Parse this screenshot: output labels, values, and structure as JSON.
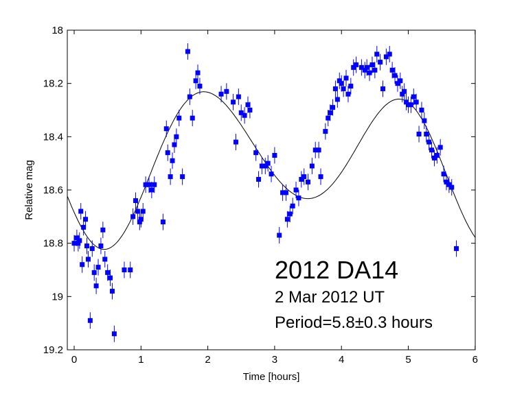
{
  "chart_data": {
    "type": "scatter",
    "xlabel": "Time [hours]",
    "ylabel": "Relative mag",
    "xlim": [
      0,
      6
    ],
    "ylim": [
      18,
      19.2
    ],
    "y_reversed": true,
    "grid": false,
    "xticks": [
      "0",
      "1",
      "2",
      "3",
      "4",
      "5",
      "6"
    ],
    "yticks": [
      "18",
      "18.2",
      "18.4",
      "18.6",
      "18.8",
      "19",
      "19.2"
    ],
    "annotations": [
      "2012 DA14",
      "2 Mar 2012 UT",
      "Period=5.8±0.3 hours"
    ],
    "marker_color": "#0000ff",
    "fit_curve": {
      "type": "sinusoid",
      "period_hours": 5.8
    },
    "points": [
      {
        "x": 0.0,
        "y": 18.8
      },
      {
        "x": 0.04,
        "y": 18.78
      },
      {
        "x": 0.06,
        "y": 18.8
      },
      {
        "x": 0.08,
        "y": 18.79
      },
      {
        "x": 0.1,
        "y": 18.68
      },
      {
        "x": 0.12,
        "y": 18.88
      },
      {
        "x": 0.14,
        "y": 18.74
      },
      {
        "x": 0.17,
        "y": 18.71
      },
      {
        "x": 0.19,
        "y": 18.81
      },
      {
        "x": 0.21,
        "y": 18.86
      },
      {
        "x": 0.24,
        "y": 19.09
      },
      {
        "x": 0.27,
        "y": 18.82
      },
      {
        "x": 0.3,
        "y": 18.91
      },
      {
        "x": 0.33,
        "y": 18.96
      },
      {
        "x": 0.36,
        "y": 18.89
      },
      {
        "x": 0.4,
        "y": 18.81
      },
      {
        "x": 0.43,
        "y": 18.75
      },
      {
        "x": 0.46,
        "y": 18.86
      },
      {
        "x": 0.5,
        "y": 18.91
      },
      {
        "x": 0.54,
        "y": 18.93
      },
      {
        "x": 0.57,
        "y": 18.98
      },
      {
        "x": 0.6,
        "y": 19.14
      },
      {
        "x": 0.75,
        "y": 18.9
      },
      {
        "x": 0.84,
        "y": 18.9
      },
      {
        "x": 0.88,
        "y": 18.7
      },
      {
        "x": 0.92,
        "y": 18.64
      },
      {
        "x": 0.95,
        "y": 18.68
      },
      {
        "x": 0.98,
        "y": 18.72
      },
      {
        "x": 1.0,
        "y": 18.71
      },
      {
        "x": 1.03,
        "y": 18.68
      },
      {
        "x": 1.07,
        "y": 18.58
      },
      {
        "x": 1.12,
        "y": 18.58
      },
      {
        "x": 1.16,
        "y": 18.6
      },
      {
        "x": 1.2,
        "y": 18.58
      },
      {
        "x": 1.33,
        "y": 18.72
      },
      {
        "x": 1.38,
        "y": 18.37
      },
      {
        "x": 1.4,
        "y": 18.46
      },
      {
        "x": 1.44,
        "y": 18.55
      },
      {
        "x": 1.47,
        "y": 18.49
      },
      {
        "x": 1.5,
        "y": 18.43
      },
      {
        "x": 1.53,
        "y": 18.4
      },
      {
        "x": 1.57,
        "y": 18.33
      },
      {
        "x": 1.62,
        "y": 18.55
      },
      {
        "x": 1.7,
        "y": 18.08
      },
      {
        "x": 1.73,
        "y": 18.25
      },
      {
        "x": 1.77,
        "y": 18.33
      },
      {
        "x": 1.82,
        "y": 18.19
      },
      {
        "x": 1.85,
        "y": 18.16
      },
      {
        "x": 1.88,
        "y": 18.21
      },
      {
        "x": 2.2,
        "y": 18.24
      },
      {
        "x": 2.28,
        "y": 18.23
      },
      {
        "x": 2.38,
        "y": 18.27
      },
      {
        "x": 2.42,
        "y": 18.42
      },
      {
        "x": 2.46,
        "y": 18.25
      },
      {
        "x": 2.5,
        "y": 18.31
      },
      {
        "x": 2.55,
        "y": 18.32
      },
      {
        "x": 2.6,
        "y": 18.28
      },
      {
        "x": 2.63,
        "y": 18.3
      },
      {
        "x": 2.72,
        "y": 18.46
      },
      {
        "x": 2.76,
        "y": 18.56
      },
      {
        "x": 2.81,
        "y": 18.51
      },
      {
        "x": 2.86,
        "y": 18.51
      },
      {
        "x": 2.9,
        "y": 18.5
      },
      {
        "x": 2.95,
        "y": 18.54
      },
      {
        "x": 3.0,
        "y": 18.47
      },
      {
        "x": 3.07,
        "y": 18.77
      },
      {
        "x": 3.12,
        "y": 18.61
      },
      {
        "x": 3.17,
        "y": 18.61
      },
      {
        "x": 3.19,
        "y": 18.71
      },
      {
        "x": 3.23,
        "y": 18.69
      },
      {
        "x": 3.27,
        "y": 18.66
      },
      {
        "x": 3.32,
        "y": 18.6
      },
      {
        "x": 3.36,
        "y": 18.63
      },
      {
        "x": 3.4,
        "y": 18.56
      },
      {
        "x": 3.44,
        "y": 18.55
      },
      {
        "x": 3.5,
        "y": 18.57
      },
      {
        "x": 3.56,
        "y": 18.51
      },
      {
        "x": 3.61,
        "y": 18.45
      },
      {
        "x": 3.66,
        "y": 18.45
      },
      {
        "x": 3.69,
        "y": 18.55
      },
      {
        "x": 3.76,
        "y": 18.38
      },
      {
        "x": 3.8,
        "y": 18.33
      },
      {
        "x": 3.83,
        "y": 18.31
      },
      {
        "x": 3.87,
        "y": 18.29
      },
      {
        "x": 3.91,
        "y": 18.22
      },
      {
        "x": 3.94,
        "y": 18.26
      },
      {
        "x": 3.97,
        "y": 18.19
      },
      {
        "x": 4.0,
        "y": 18.2
      },
      {
        "x": 4.03,
        "y": 18.22
      },
      {
        "x": 4.07,
        "y": 18.18
      },
      {
        "x": 4.1,
        "y": 18.24
      },
      {
        "x": 4.14,
        "y": 18.21
      },
      {
        "x": 4.18,
        "y": 18.14
      },
      {
        "x": 4.22,
        "y": 18.13
      },
      {
        "x": 4.3,
        "y": 18.14
      },
      {
        "x": 4.35,
        "y": 18.15
      },
      {
        "x": 4.38,
        "y": 18.14
      },
      {
        "x": 4.42,
        "y": 18.16
      },
      {
        "x": 4.46,
        "y": 18.13
      },
      {
        "x": 4.5,
        "y": 18.15
      },
      {
        "x": 4.53,
        "y": 18.09
      },
      {
        "x": 4.58,
        "y": 18.12
      },
      {
        "x": 4.62,
        "y": 18.22
      },
      {
        "x": 4.67,
        "y": 18.1
      },
      {
        "x": 4.72,
        "y": 18.09
      },
      {
        "x": 4.76,
        "y": 18.15
      },
      {
        "x": 4.8,
        "y": 18.17
      },
      {
        "x": 4.84,
        "y": 18.2
      },
      {
        "x": 4.88,
        "y": 18.19
      },
      {
        "x": 4.91,
        "y": 18.24
      },
      {
        "x": 4.94,
        "y": 18.23
      },
      {
        "x": 4.97,
        "y": 18.27
      },
      {
        "x": 5.0,
        "y": 18.28
      },
      {
        "x": 5.04,
        "y": 18.28
      },
      {
        "x": 5.08,
        "y": 18.25
      },
      {
        "x": 5.12,
        "y": 18.27
      },
      {
        "x": 5.16,
        "y": 18.39
      },
      {
        "x": 5.2,
        "y": 18.3
      },
      {
        "x": 5.24,
        "y": 18.34
      },
      {
        "x": 5.27,
        "y": 18.39
      },
      {
        "x": 5.31,
        "y": 18.42
      },
      {
        "x": 5.35,
        "y": 18.45
      },
      {
        "x": 5.39,
        "y": 18.48
      },
      {
        "x": 5.43,
        "y": 18.47
      },
      {
        "x": 5.48,
        "y": 18.44
      },
      {
        "x": 5.53,
        "y": 18.54
      },
      {
        "x": 5.57,
        "y": 18.57
      },
      {
        "x": 5.61,
        "y": 18.58
      },
      {
        "x": 5.65,
        "y": 18.59
      },
      {
        "x": 5.72,
        "y": 18.82
      }
    ]
  }
}
